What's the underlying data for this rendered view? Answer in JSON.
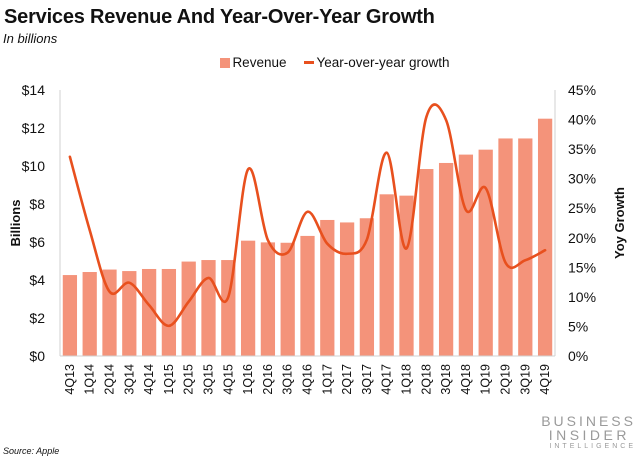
{
  "header": {
    "title": "Services Revenue And Year-Over-Year Growth",
    "subtitle": "In billions"
  },
  "footer": {
    "source": "Source: Apple",
    "brand_line1": "BUSINESS",
    "brand_line2": "INSIDER",
    "brand_line3": "INTELLIGENCE"
  },
  "colors": {
    "bar": "#F4937A",
    "line": "#E8501E",
    "axis": "#d0d0d0"
  },
  "chart_data": {
    "type": "bar",
    "title": "Services Revenue And Year-Over-Year Growth",
    "subtitle": "In billions",
    "categories": [
      "4Q13",
      "1Q14",
      "2Q14",
      "3Q14",
      "4Q14",
      "1Q15",
      "2Q15",
      "3Q15",
      "4Q15",
      "1Q16",
      "2Q16",
      "3Q16",
      "4Q16",
      "1Q17",
      "2Q17",
      "3Q17",
      "4Q17",
      "1Q18",
      "2Q18",
      "3Q18",
      "4Q18",
      "1Q19",
      "2Q19",
      "3Q19",
      "4Q19"
    ],
    "series": [
      {
        "name": "Revenue",
        "type": "bar",
        "axis": "left",
        "values": [
          4.26,
          4.42,
          4.55,
          4.47,
          4.58,
          4.58,
          4.97,
          5.05,
          5.05,
          6.07,
          5.98,
          5.96,
          6.32,
          7.16,
          7.03,
          7.25,
          8.51,
          8.44,
          9.84,
          10.16,
          10.6,
          10.86,
          11.45,
          11.45,
          12.49
        ]
      },
      {
        "name": "Year-over-year growth",
        "type": "line",
        "axis": "right",
        "values": [
          33.7,
          21.3,
          10.9,
          12.4,
          8.6,
          5.1,
          9.2,
          13.2,
          10.0,
          31.6,
          19.6,
          17.5,
          24.4,
          19.0,
          17.3,
          19.7,
          34.4,
          18.2,
          40.4,
          39.9,
          24.7,
          28.4,
          15.8,
          16.2,
          17.9
        ]
      }
    ],
    "xlabel": "",
    "ylabel": "Billions",
    "y2label": "Yoy Growth",
    "ylim": [
      0,
      14
    ],
    "y2lim": [
      0,
      45
    ],
    "yticks": [
      "$0",
      "$2",
      "$4",
      "$6",
      "$8",
      "$10",
      "$12",
      "$14"
    ],
    "y2ticks": [
      "0%",
      "5%",
      "10%",
      "15%",
      "20%",
      "25%",
      "30%",
      "35%",
      "40%",
      "45%"
    ],
    "grid": false,
    "legend": "top-center"
  }
}
